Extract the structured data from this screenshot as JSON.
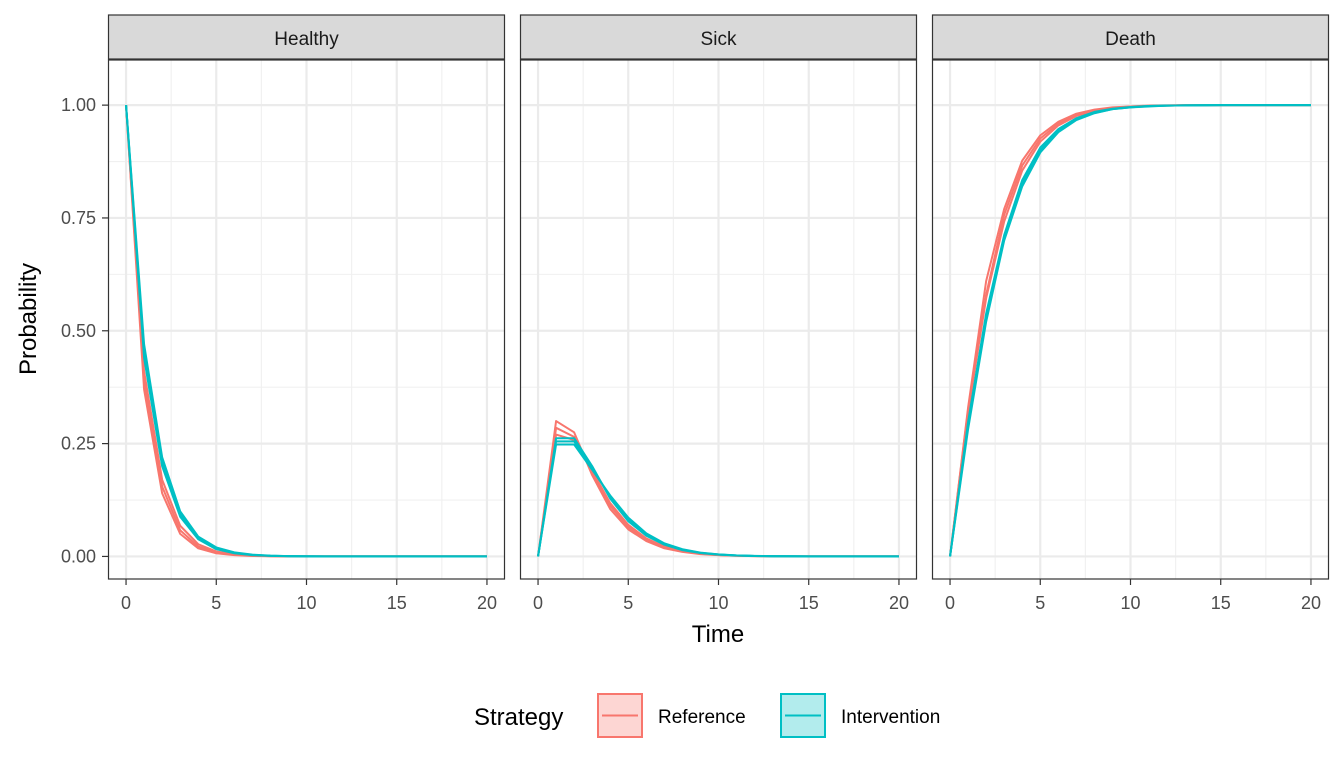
{
  "chart_data": {
    "type": "line",
    "xlabel": "Time",
    "ylabel": "Probability",
    "xlim": [
      -1,
      21
    ],
    "ylim": [
      -0.05,
      1.1
    ],
    "x_ticks": [
      0,
      5,
      10,
      15,
      20
    ],
    "x_tick_labels": [
      "0",
      "5",
      "10",
      "15",
      "20"
    ],
    "y_ticks": [
      0,
      0.25,
      0.5,
      0.75,
      1.0
    ],
    "y_tick_labels": [
      "0.00",
      "0.25",
      "0.50",
      "0.75",
      "1.00"
    ],
    "grid": true,
    "legend": {
      "title": "Strategy",
      "position": "bottom",
      "entries": [
        {
          "label": "Reference",
          "color": "#F8766D"
        },
        {
          "label": "Intervention",
          "color": "#00BFC4"
        }
      ]
    },
    "x": [
      0,
      1,
      2,
      3,
      4,
      5,
      6,
      7,
      8,
      9,
      10,
      11,
      12,
      13,
      14,
      15,
      16,
      17,
      18,
      19,
      20
    ],
    "panels": [
      {
        "label": "Healthy",
        "series": [
          {
            "strategy": "Reference",
            "values": [
              1.0,
              0.37,
              0.14,
              0.05,
              0.018,
              0.007,
              0.003,
              0.001,
              0.0004,
              0.0002,
              0.0001,
              0,
              0,
              0,
              0,
              0,
              0,
              0,
              0,
              0,
              0
            ]
          },
          {
            "strategy": "Reference",
            "values": [
              1.0,
              0.39,
              0.155,
              0.058,
              0.022,
              0.009,
              0.004,
              0.0015,
              0.0006,
              0.0002,
              0.0001,
              0,
              0,
              0,
              0,
              0,
              0,
              0,
              0,
              0,
              0
            ]
          },
          {
            "strategy": "Reference",
            "values": [
              1.0,
              0.41,
              0.17,
              0.068,
              0.027,
              0.011,
              0.005,
              0.002,
              0.0008,
              0.0003,
              0.0001,
              0,
              0,
              0,
              0,
              0,
              0,
              0,
              0,
              0,
              0
            ]
          },
          {
            "strategy": "Intervention",
            "values": [
              1.0,
              0.44,
              0.2,
              0.088,
              0.038,
              0.016,
              0.007,
              0.003,
              0.0013,
              0.0005,
              0.0002,
              0.0001,
              0,
              0,
              0,
              0,
              0,
              0,
              0,
              0,
              0
            ]
          },
          {
            "strategy": "Intervention",
            "values": [
              1.0,
              0.455,
              0.21,
              0.094,
              0.041,
              0.018,
              0.008,
              0.0035,
              0.0015,
              0.0006,
              0.0003,
              0.0001,
              0,
              0,
              0,
              0,
              0,
              0,
              0,
              0,
              0
            ]
          },
          {
            "strategy": "Intervention",
            "values": [
              1.0,
              0.47,
              0.22,
              0.1,
              0.044,
              0.02,
              0.009,
              0.004,
              0.0017,
              0.0007,
              0.0003,
              0.0001,
              0,
              0,
              0,
              0,
              0,
              0,
              0,
              0,
              0
            ]
          }
        ]
      },
      {
        "label": "Sick",
        "series": [
          {
            "strategy": "Reference",
            "values": [
              0,
              0.3,
              0.275,
              0.18,
              0.105,
              0.06,
              0.034,
              0.018,
              0.01,
              0.005,
              0.003,
              0.0015,
              0.0008,
              0.0004,
              0.0002,
              0.0001,
              0,
              0,
              0,
              0,
              0
            ]
          },
          {
            "strategy": "Reference",
            "values": [
              0,
              0.285,
              0.265,
              0.185,
              0.112,
              0.065,
              0.037,
              0.02,
              0.011,
              0.006,
              0.003,
              0.0016,
              0.0008,
              0.0004,
              0.0002,
              0.0001,
              0,
              0,
              0,
              0,
              0
            ]
          },
          {
            "strategy": "Reference",
            "values": [
              0,
              0.27,
              0.258,
              0.19,
              0.118,
              0.07,
              0.04,
              0.022,
              0.012,
              0.0065,
              0.0035,
              0.0018,
              0.0009,
              0.0005,
              0.0002,
              0.0001,
              0,
              0,
              0,
              0,
              0
            ]
          },
          {
            "strategy": "Intervention",
            "values": [
              0,
              0.262,
              0.262,
              0.2,
              0.128,
              0.078,
              0.046,
              0.026,
              0.014,
              0.0075,
              0.004,
              0.002,
              0.001,
              0.0005,
              0.0003,
              0.0001,
              0,
              0,
              0,
              0,
              0
            ]
          },
          {
            "strategy": "Intervention",
            "values": [
              0,
              0.255,
              0.255,
              0.196,
              0.132,
              0.082,
              0.048,
              0.027,
              0.015,
              0.008,
              0.0042,
              0.0021,
              0.0011,
              0.0005,
              0.0003,
              0.0001,
              0,
              0,
              0,
              0,
              0
            ]
          },
          {
            "strategy": "Intervention",
            "values": [
              0,
              0.248,
              0.248,
              0.192,
              0.135,
              0.086,
              0.051,
              0.029,
              0.016,
              0.0085,
              0.0045,
              0.0023,
              0.0012,
              0.0006,
              0.0003,
              0.0001,
              0,
              0,
              0,
              0,
              0
            ]
          }
        ]
      },
      {
        "label": "Death",
        "series": [
          {
            "strategy": "Reference",
            "values": [
              0,
              0.33,
              0.61,
              0.77,
              0.877,
              0.933,
              0.963,
              0.981,
              0.99,
              0.995,
              0.997,
              0.999,
              0.9995,
              0.9998,
              0.9999,
              1,
              1,
              1,
              1,
              1,
              1
            ]
          },
          {
            "strategy": "Reference",
            "values": [
              0,
              0.325,
              0.58,
              0.757,
              0.866,
              0.926,
              0.959,
              0.978,
              0.988,
              0.994,
              0.997,
              0.998,
              0.9992,
              0.9996,
              0.9998,
              1,
              1,
              1,
              1,
              1,
              1
            ]
          },
          {
            "strategy": "Reference",
            "values": [
              0,
              0.32,
              0.572,
              0.742,
              0.855,
              0.919,
              0.955,
              0.976,
              0.987,
              0.993,
              0.996,
              0.998,
              0.999,
              0.9995,
              0.9998,
              1,
              1,
              1,
              1,
              1,
              1
            ]
          },
          {
            "strategy": "Intervention",
            "values": [
              0,
              0.298,
              0.538,
              0.712,
              0.834,
              0.906,
              0.947,
              0.971,
              0.985,
              0.992,
              0.996,
              0.998,
              0.999,
              0.9995,
              0.9997,
              1,
              1,
              1,
              1,
              1,
              1
            ]
          },
          {
            "strategy": "Intervention",
            "values": [
              0,
              0.29,
              0.53,
              0.706,
              0.827,
              0.9,
              0.944,
              0.969,
              0.983,
              0.991,
              0.995,
              0.998,
              0.999,
              0.9994,
              0.9997,
              1,
              1,
              1,
              1,
              1,
              1
            ]
          },
          {
            "strategy": "Intervention",
            "values": [
              0,
              0.282,
              0.52,
              0.7,
              0.82,
              0.895,
              0.94,
              0.967,
              0.982,
              0.991,
              0.995,
              0.997,
              0.999,
              0.9994,
              0.9997,
              1,
              1,
              1,
              1,
              1,
              1
            ]
          }
        ]
      }
    ]
  }
}
